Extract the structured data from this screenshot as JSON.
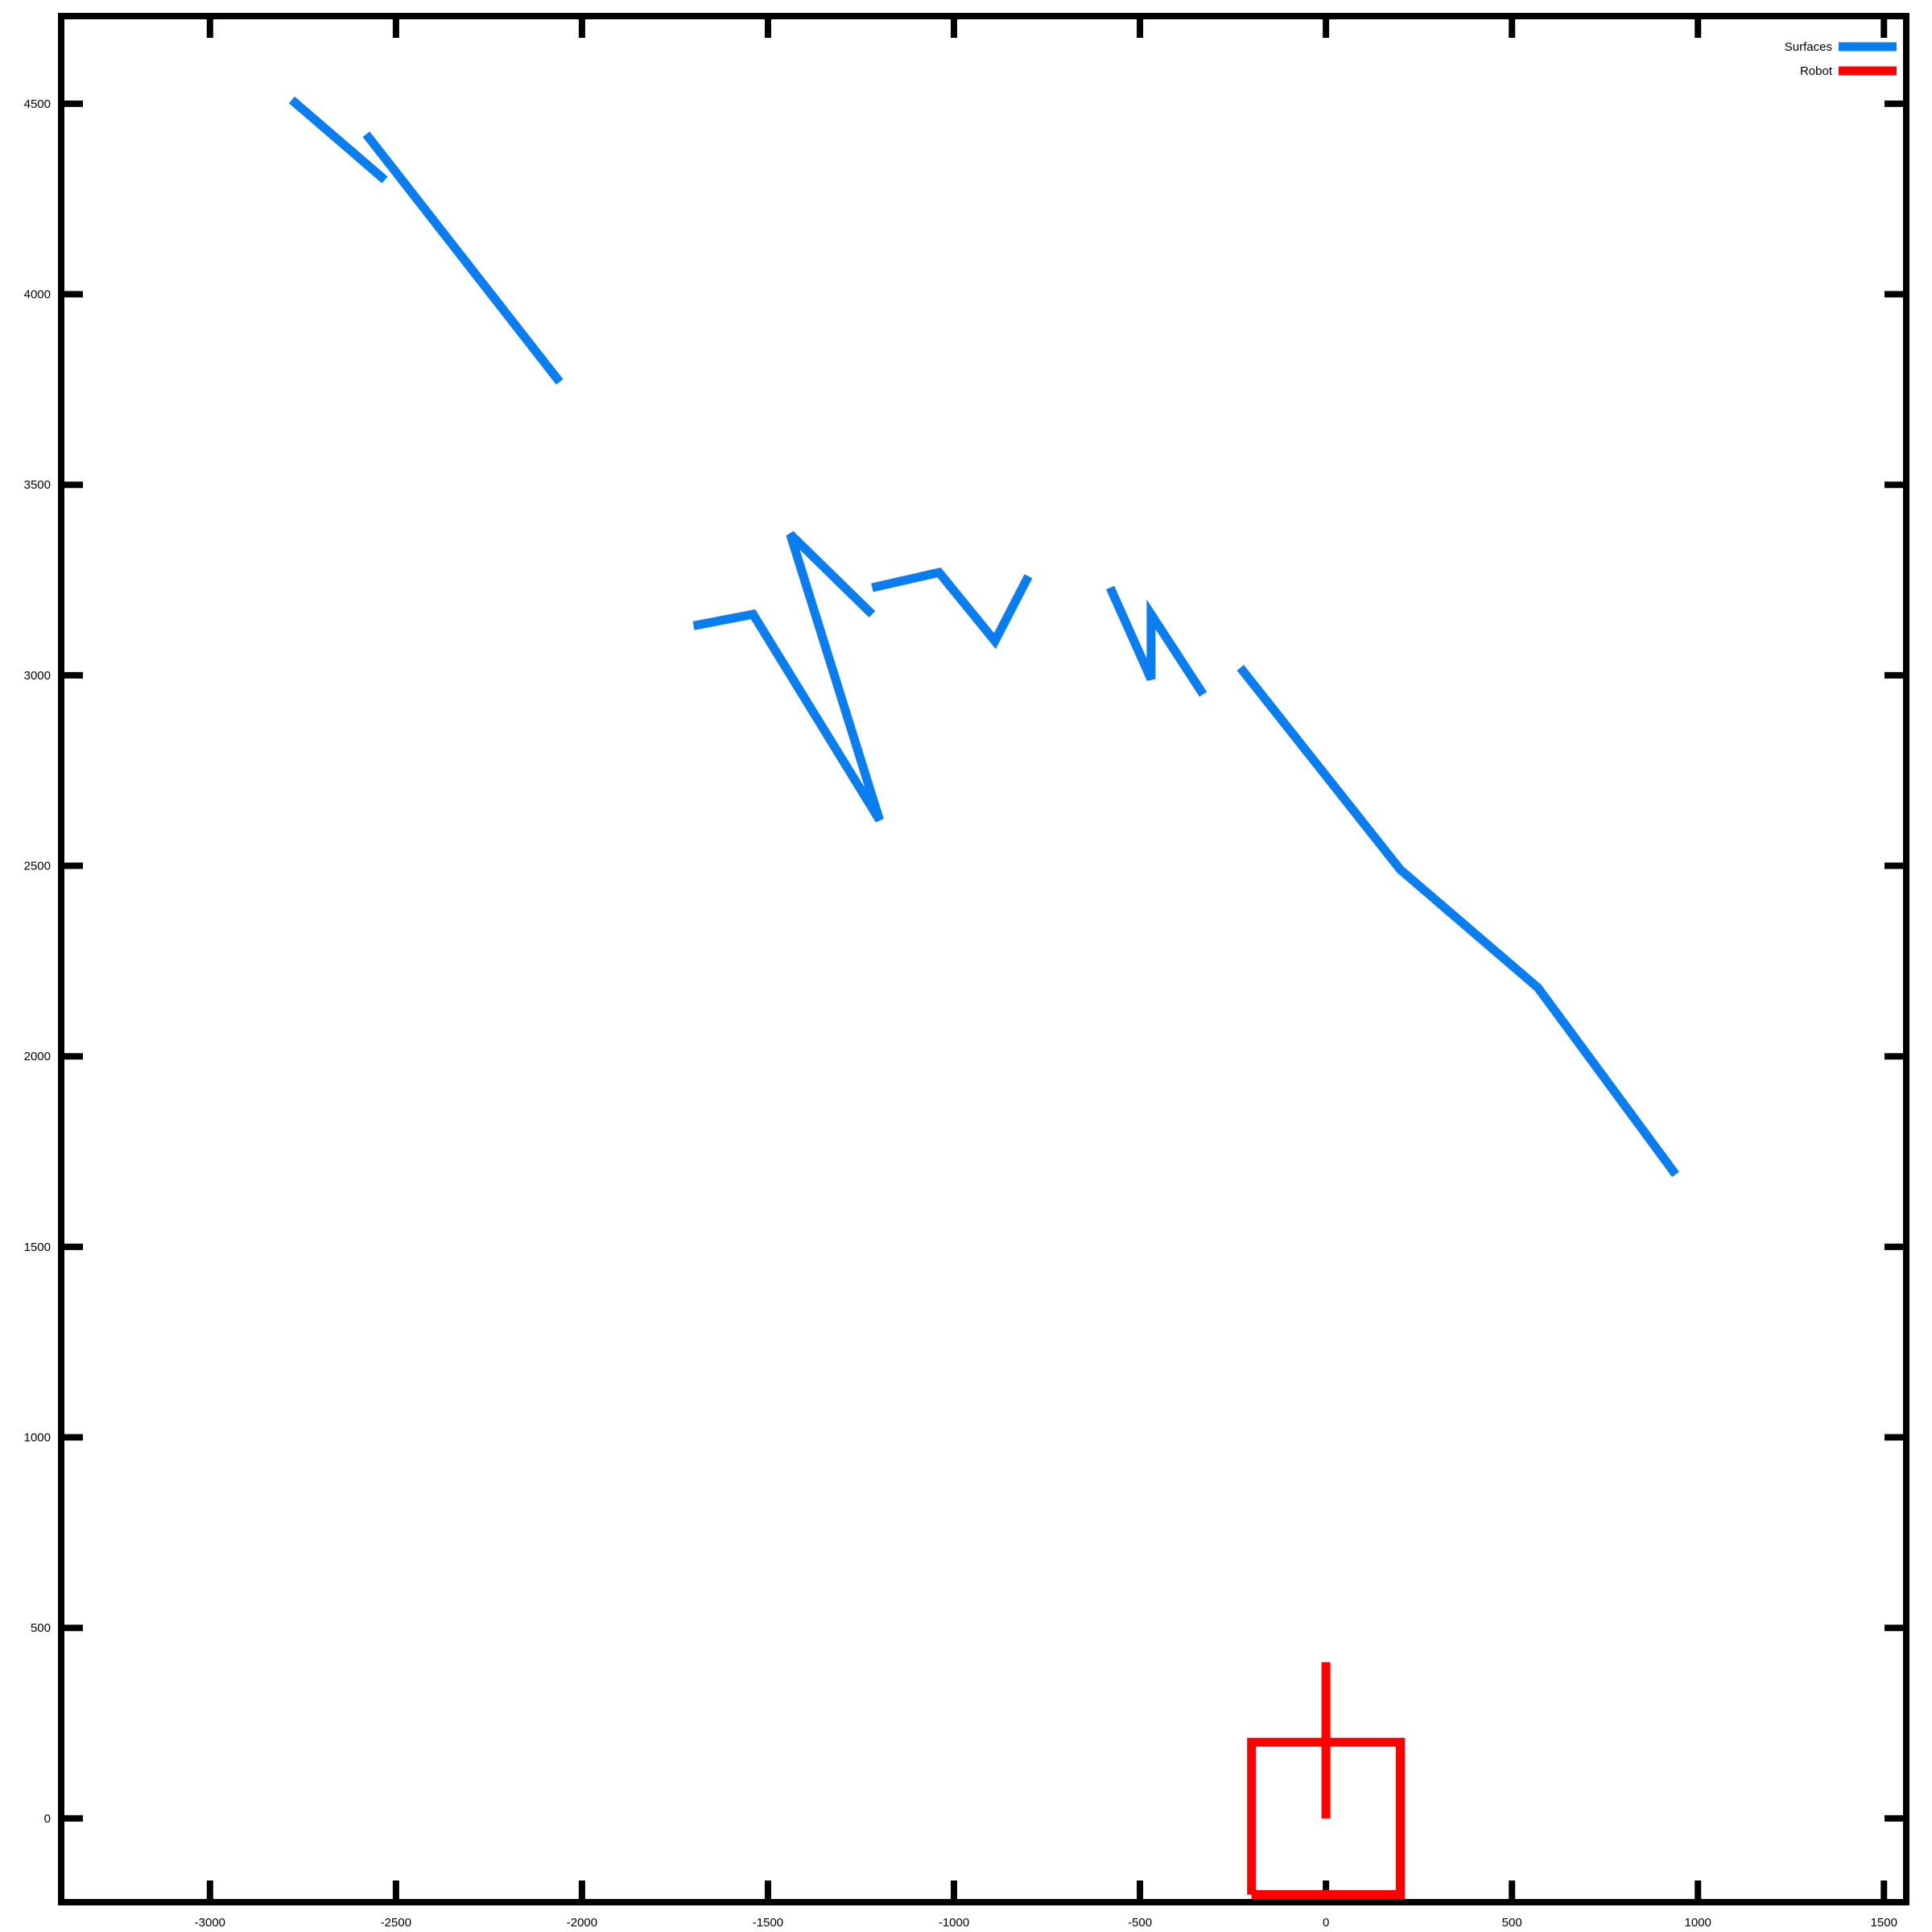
{
  "chart_data": {
    "type": "line",
    "title": "",
    "xlabel": "",
    "ylabel": "",
    "xlim": [
      -3400,
      1560
    ],
    "ylim": [
      -220,
      4730
    ],
    "x_ticks": [
      -3000,
      -2500,
      -2000,
      -1500,
      -1000,
      -500,
      0,
      500,
      1000,
      1500
    ],
    "y_ticks": [
      0,
      500,
      1000,
      1500,
      2000,
      2500,
      3000,
      3500,
      4000,
      4500
    ],
    "grid": false,
    "legend_position": "top-right",
    "series": [
      {
        "name": "Surfaces",
        "color": "#0a7df0",
        "segments": [
          [
            [
              -2780,
              4510
            ],
            [
              -2530,
              4300
            ]
          ],
          [
            [
              -2580,
              4420
            ],
            [
              -2060,
              3770
            ]
          ],
          [
            [
              -1700,
              3130
            ],
            [
              -1540,
              3160
            ],
            [
              -1200,
              2620
            ],
            [
              -1440,
              3370
            ],
            [
              -1220,
              3160
            ]
          ],
          [
            [
              -1220,
              3230
            ],
            [
              -1040,
              3270
            ],
            [
              -890,
              3090
            ],
            [
              -800,
              3260
            ]
          ],
          [
            [
              -580,
              3230
            ],
            [
              -470,
              2990
            ],
            [
              -470,
              3160
            ],
            [
              -330,
              2950
            ]
          ],
          [
            [
              -230,
              3020
            ],
            [
              200,
              2490
            ],
            [
              570,
              2180
            ],
            [
              940,
              1690
            ]
          ]
        ]
      },
      {
        "name": "Robot",
        "color": "#ff0000",
        "segments": [
          [
            [
              -200,
              -200
            ],
            [
              200,
              -200
            ],
            [
              200,
              200
            ],
            [
              -200,
              200
            ],
            [
              -200,
              -200
            ]
          ],
          [
            [
              0,
              0
            ],
            [
              0,
              410
            ]
          ]
        ]
      }
    ]
  }
}
